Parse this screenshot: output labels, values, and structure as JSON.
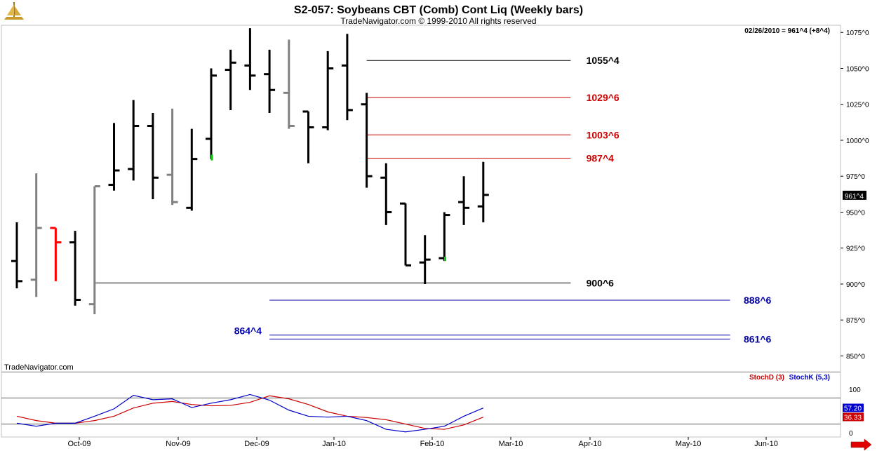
{
  "header": {
    "title": "S2-057:  Soybeans CBT (Comb) Cont Liq  (Weekly bars)",
    "subtitle": "TradeNavigator.com © 1999-2010 All rights reserved",
    "last_info": "02/26/2010 = 961^4 (+8^4)",
    "watermark": "TradeNavigator.com"
  },
  "chart_data": [
    {
      "type": "ohlc",
      "y_range": [
        839,
        1080
      ],
      "y_ticks": [
        {
          "v": 850,
          "label": "850^0"
        },
        {
          "v": 875,
          "label": "875^0"
        },
        {
          "v": 900,
          "label": "900^0"
        },
        {
          "v": 925,
          "label": "925^0"
        },
        {
          "v": 950,
          "label": "950^0"
        },
        {
          "v": 975,
          "label": "975^0"
        },
        {
          "v": 1000,
          "label": "1000^0"
        },
        {
          "v": 1025,
          "label": "1025^0"
        },
        {
          "v": 1050,
          "label": "1050^0"
        },
        {
          "v": 1075,
          "label": "1075^0"
        }
      ],
      "last_price_label": "961^4",
      "last_price": 961.5,
      "x_ticks": [
        "Oct-09",
        "Nov-09",
        "Dec-09",
        "Jan-10",
        "Feb-10",
        "Mar-10",
        "Apr-10",
        "May-10",
        "Jun-10"
      ],
      "bars": [
        {
          "o": 916,
          "h": 943,
          "l": 897,
          "c": 902,
          "color": "#000000"
        },
        {
          "o": 903,
          "h": 977,
          "l": 891,
          "c": 939,
          "color": "#808080"
        },
        {
          "o": 939,
          "h": 939,
          "l": 902,
          "c": 929,
          "color": "#ff0000"
        },
        {
          "o": 929,
          "h": 937,
          "l": 885,
          "c": 889,
          "color": "#000000"
        },
        {
          "o": 886,
          "h": 968,
          "l": 879,
          "c": 968,
          "color": "#808080"
        },
        {
          "o": 969,
          "h": 1012,
          "l": 965,
          "c": 979,
          "color": "#000000"
        },
        {
          "o": 980,
          "h": 1028,
          "l": 972,
          "c": 1010,
          "color": "#000000"
        },
        {
          "o": 1010,
          "h": 1019,
          "l": 959,
          "c": 974,
          "color": "#000000"
        },
        {
          "o": 976,
          "h": 1022,
          "l": 955,
          "c": 957,
          "color": "#808080"
        },
        {
          "o": 953,
          "h": 1008,
          "l": 951,
          "c": 987,
          "color": "#000000"
        },
        {
          "o": 1001,
          "h": 1050,
          "l": 987,
          "c": 1045,
          "color": "#000000"
        },
        {
          "o": 1049,
          "h": 1063,
          "l": 1021,
          "c": 1054,
          "color": "#000000"
        },
        {
          "o": 1052,
          "h": 1078,
          "l": 1035,
          "c": 1045,
          "color": "#000000"
        },
        {
          "o": 1046,
          "h": 1063,
          "l": 1019,
          "c": 1035,
          "color": "#000000"
        },
        {
          "o": 1033,
          "h": 1070,
          "l": 1008,
          "c": 1010,
          "color": "#808080"
        },
        {
          "o": 1020,
          "h": 1020,
          "l": 984,
          "c": 1009,
          "color": "#000000"
        },
        {
          "o": 1009,
          "h": 1062,
          "l": 1007,
          "c": 1050,
          "color": "#000000"
        },
        {
          "o": 1052,
          "h": 1074,
          "l": 1014,
          "c": 1021,
          "color": "#000000"
        },
        {
          "o": 1025,
          "h": 1033,
          "l": 967,
          "c": 975,
          "color": "#000000"
        },
        {
          "o": 974,
          "h": 984,
          "l": 941,
          "c": 950,
          "color": "#000000"
        },
        {
          "o": 956,
          "h": 956,
          "l": 913,
          "c": 913,
          "color": "#000000"
        },
        {
          "o": 915,
          "h": 934,
          "l": 900,
          "c": 917,
          "color": "#000000"
        },
        {
          "o": 918,
          "h": 950,
          "l": 916,
          "c": 948,
          "color": "#000000"
        },
        {
          "o": 957,
          "h": 975,
          "l": 941,
          "c": 953,
          "color": "#000000"
        },
        {
          "o": 954,
          "h": 985,
          "l": 943,
          "c": 962,
          "color": "#000000"
        }
      ],
      "green_marks": [
        {
          "bar": 10,
          "from": 986,
          "to": 990
        },
        {
          "bar": 22,
          "from": 916,
          "to": 919
        }
      ],
      "levels": [
        {
          "value": 1055.5,
          "label": "1055^4",
          "color": "#000000",
          "from_bar": 18,
          "to_bar": 28.5,
          "label_side": "right",
          "label_bar": 29.3
        },
        {
          "value": 1029.75,
          "label": "1029^6",
          "color": "#cc0000",
          "from_bar": 18,
          "to_bar": 28.5,
          "label_side": "right",
          "label_bar": 29.3
        },
        {
          "value": 1003.75,
          "label": "1003^6",
          "color": "#cc0000",
          "from_bar": 18,
          "to_bar": 28.5,
          "label_side": "right",
          "label_bar": 29.3
        },
        {
          "value": 987.5,
          "label": "987^4",
          "color": "#cc0000",
          "from_bar": 18,
          "to_bar": 28.5,
          "label_side": "right",
          "label_bar": 29.3
        },
        {
          "value": 900.75,
          "label": "900^6",
          "color": "#000000",
          "from_bar": 4,
          "to_bar": 28.5,
          "label_side": "right",
          "label_bar": 29.3
        },
        {
          "value": 888.75,
          "label": "888^6",
          "color": "#0000aa",
          "from_bar": 13,
          "to_bar": 36.7,
          "label_side": "right",
          "label_bar": 37.4
        },
        {
          "value": 864.5,
          "label": "864^4",
          "color": "#0000aa",
          "from_bar": 13,
          "to_bar": 36.7,
          "label_side": "left",
          "label_bar": 12.6
        },
        {
          "value": 861.75,
          "label": "861^6",
          "color": "#0000aa",
          "from_bar": 13,
          "to_bar": 36.7,
          "label_side": "right",
          "label_bar": 37.4
        }
      ]
    },
    {
      "type": "line",
      "y_range": [
        0,
        100
      ],
      "y_ticks": [
        {
          "v": 0,
          "label": "0"
        },
        {
          "v": 100,
          "label": "100"
        }
      ],
      "ref_lines": [
        80,
        20
      ],
      "legend": [
        {
          "name": "StochD (3)",
          "color": "#cc0000"
        },
        {
          "name": "StochK (5,3)",
          "color": "#0000cc"
        }
      ],
      "readouts": [
        {
          "label": "57.20",
          "color": "#0000cc",
          "value": 57.2
        },
        {
          "label": "36.33",
          "color": "#cc0000",
          "value": 36.33
        }
      ],
      "series": [
        {
          "name": "StochD (3)",
          "color": "#cc0000",
          "values": [
            38,
            28,
            22,
            22,
            28,
            38,
            57,
            68,
            72,
            65,
            62,
            63,
            70,
            85,
            78,
            65,
            48,
            38,
            35,
            30,
            20,
            10,
            8,
            18,
            36
          ]
        },
        {
          "name": "StochK (5,3)",
          "color": "#0000cc",
          "values": [
            22,
            15,
            22,
            22,
            38,
            55,
            86,
            76,
            78,
            58,
            68,
            76,
            88,
            75,
            52,
            38,
            36,
            38,
            28,
            8,
            2,
            8,
            15,
            38,
            57
          ]
        }
      ]
    }
  ]
}
